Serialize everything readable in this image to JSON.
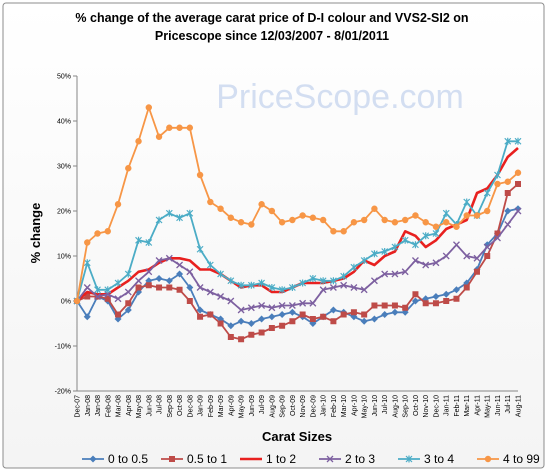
{
  "chart_data": {
    "type": "line",
    "title": [
      "% change  of the average carat price of  D-I colour and VVS2-SI2  on",
      "Pricescope since 12/03/2007 - 8/01/2011"
    ],
    "watermark": "PriceScope.com",
    "y_label": "% change",
    "x_label": "Carat Sizes",
    "categories": [
      "Dec-07",
      "Jan-08",
      "Jan-08",
      "Feb-08",
      "Mar-08",
      "Apr-08",
      "May-08",
      "Jun-08",
      "Jul-08",
      "Sep-08",
      "Oct-08",
      "Dec-08",
      "Jan-09",
      "Feb-09",
      "Mar-09",
      "Apr-09",
      "May-09",
      "Jun-09",
      "Jul-09",
      "Aug-09",
      "Sep-09",
      "Oct-09",
      "Nov-09",
      "Dec-09",
      "Jan-10",
      "Feb-10",
      "Mar-10",
      "Apr-10",
      "May-10",
      "Jun-10",
      "Jul-10",
      "Aug-10",
      "Sep-10",
      "Oct-10",
      "Nov-10",
      "Dec-10",
      "Jan-11",
      "Feb-11",
      "Mar-11",
      "Apr-11",
      "May-11",
      "Jun-11",
      "Jul-11",
      "Aug-11"
    ],
    "ylim": [
      -20,
      50
    ],
    "yticks": [
      {
        "value": -20,
        "label": "-20%"
      },
      {
        "value": -10,
        "label": "-10%"
      },
      {
        "value": 0,
        "label": "0%"
      },
      {
        "value": 10,
        "label": "10%"
      },
      {
        "value": 20,
        "label": "20%"
      },
      {
        "value": 30,
        "label": "30%"
      },
      {
        "value": 40,
        "label": "40%"
      },
      {
        "value": 50,
        "label": "50%"
      }
    ],
    "grid": false,
    "legend": "bottom",
    "series": [
      {
        "name": "0 to 0.5",
        "color": "#4a7ebb",
        "marker": "diamond",
        "values": [
          0,
          -3.5,
          1,
          0,
          -4,
          -2,
          2,
          4.5,
          5,
          4.5,
          6,
          3,
          -2,
          -3,
          -4,
          -5.5,
          -4.5,
          -5,
          -4,
          -3.5,
          -3,
          -2.5,
          -3.5,
          -5,
          -3.5,
          -2,
          -2.5,
          -3.5,
          -4.5,
          -4,
          -3,
          -2.5,
          -2.5,
          0,
          0.5,
          1,
          1.5,
          2.5,
          4,
          7,
          12.5,
          15,
          20,
          20.5
        ]
      },
      {
        "name": "0.5  to 1",
        "color": "#be4b48",
        "marker": "square",
        "values": [
          0,
          1,
          1,
          0.5,
          -3,
          -0.5,
          3,
          3.5,
          3,
          3,
          2.5,
          0,
          -3.5,
          -3,
          -5,
          -8,
          -8.5,
          -7.5,
          -7,
          -6,
          -5.5,
          -4.5,
          -3,
          -4,
          -3.5,
          -4.5,
          -3,
          -2.5,
          -3,
          -1,
          -1,
          -1,
          -1.5,
          1.5,
          -0.5,
          -0.5,
          0,
          0.5,
          3,
          6.5,
          10,
          15,
          24,
          26
        ]
      },
      {
        "name": "1 to 2",
        "color": "#e8201f",
        "marker": "none",
        "values": [
          0,
          2,
          1.5,
          1.5,
          3,
          4.5,
          6.5,
          7,
          8.5,
          9.5,
          9.5,
          9,
          7,
          7,
          6,
          4.5,
          3,
          3.5,
          3.5,
          2,
          2,
          3,
          4,
          4,
          4,
          4.5,
          5,
          6.5,
          9,
          8,
          10,
          11,
          15.5,
          14.5,
          12,
          13.5,
          16,
          17,
          18,
          24,
          25,
          28,
          32,
          34
        ]
      },
      {
        "name": "2 to 3",
        "color": "#7d60a0",
        "marker": "x",
        "values": [
          0,
          3,
          1,
          1.5,
          0.5,
          2,
          4.5,
          6.5,
          9,
          9.5,
          8,
          6.5,
          3,
          2,
          1,
          0,
          -2,
          -1.5,
          -1,
          -1.5,
          -1,
          -1,
          -0.5,
          -0.5,
          2.5,
          3,
          3.5,
          3,
          2.5,
          4.5,
          6,
          6,
          6.5,
          9,
          8,
          8.5,
          10,
          12.5,
          10,
          9.5,
          12,
          14,
          17,
          20
        ]
      },
      {
        "name": "3 to 4",
        "color": "#4bacc6",
        "marker": "star",
        "values": [
          0,
          8.5,
          2.5,
          2.5,
          4,
          6,
          13.5,
          13,
          18,
          19.5,
          18.5,
          19.5,
          11.5,
          8,
          6,
          4.5,
          3.5,
          3.5,
          4,
          3,
          2.5,
          3,
          4,
          5,
          4.5,
          4.5,
          5.5,
          7.5,
          9,
          10.5,
          11,
          12,
          13.5,
          12.5,
          14.5,
          15,
          19.5,
          17,
          22,
          19,
          24,
          28,
          35.5,
          35.5
        ]
      },
      {
        "name": "4 to 99",
        "color": "#f79646",
        "marker": "circle",
        "values": [
          0,
          13,
          15,
          15.5,
          21.5,
          29.5,
          35.5,
          43,
          36.5,
          38.5,
          38.5,
          38.5,
          28,
          22,
          20.5,
          18.5,
          17.5,
          17,
          21.5,
          20,
          17.5,
          18,
          19,
          18.5,
          18,
          15.5,
          15.5,
          17.5,
          18,
          20.5,
          18,
          17.5,
          18,
          19,
          17.5,
          16.5,
          17.5,
          16.5,
          19,
          19,
          20,
          26,
          26.5,
          28.5
        ]
      }
    ]
  }
}
